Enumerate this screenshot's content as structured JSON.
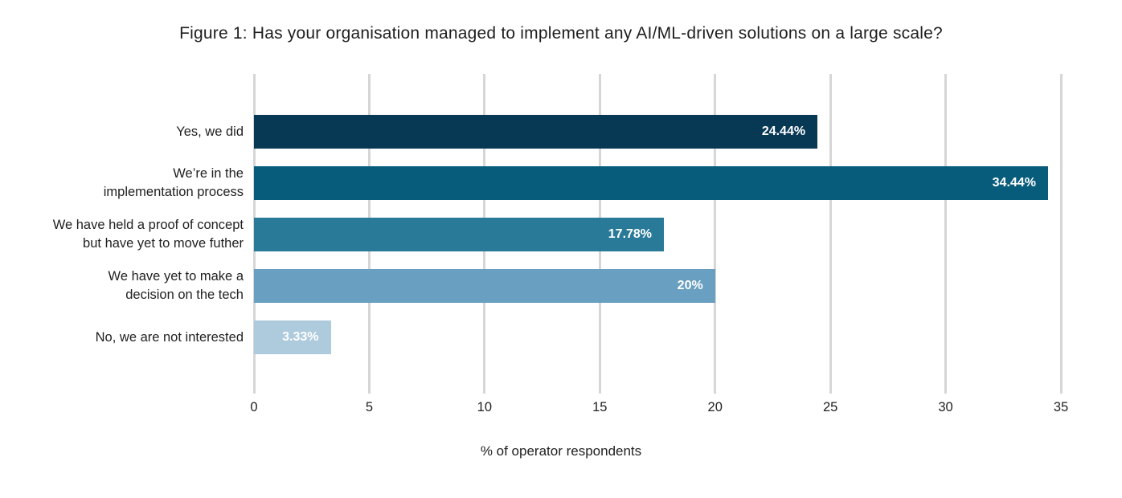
{
  "chart_data": {
    "type": "bar",
    "orientation": "horizontal",
    "title": "Figure 1: Has your organisation managed to implement any AI/ML-driven solutions on a large scale?",
    "categories": [
      "Yes, we did",
      "We’re in the implementation process",
      "We have held a proof of concept but have yet to move futher",
      "We have yet to make a decision on the tech",
      "No, we are not interested"
    ],
    "category_lines": [
      [
        "Yes, we did"
      ],
      [
        "We’re in the",
        "implementation process"
      ],
      [
        "We have held a proof of concept",
        "but have yet to move futher"
      ],
      [
        "We have yet to make a",
        "decision on the tech"
      ],
      [
        "No, we are not interested"
      ]
    ],
    "values": [
      24.44,
      34.44,
      17.78,
      20,
      3.33
    ],
    "value_labels": [
      "24.44%",
      "34.44%",
      "17.78%",
      "20%",
      "3.33%"
    ],
    "bar_colors": [
      "#073955",
      "#085C7B",
      "#297A99",
      "#699FC0",
      "#AECADD"
    ],
    "value_label_color": "#FFFFFF",
    "xlabel": "% of operator respondents",
    "xlim": [
      0,
      35
    ],
    "xticks": [
      0,
      5,
      10,
      15,
      20,
      25,
      30,
      35
    ],
    "grid": "vertical",
    "gridline_color": "#D6D6D6",
    "text_color": "#212121",
    "legend": "none",
    "background": "#FFFFFF"
  }
}
